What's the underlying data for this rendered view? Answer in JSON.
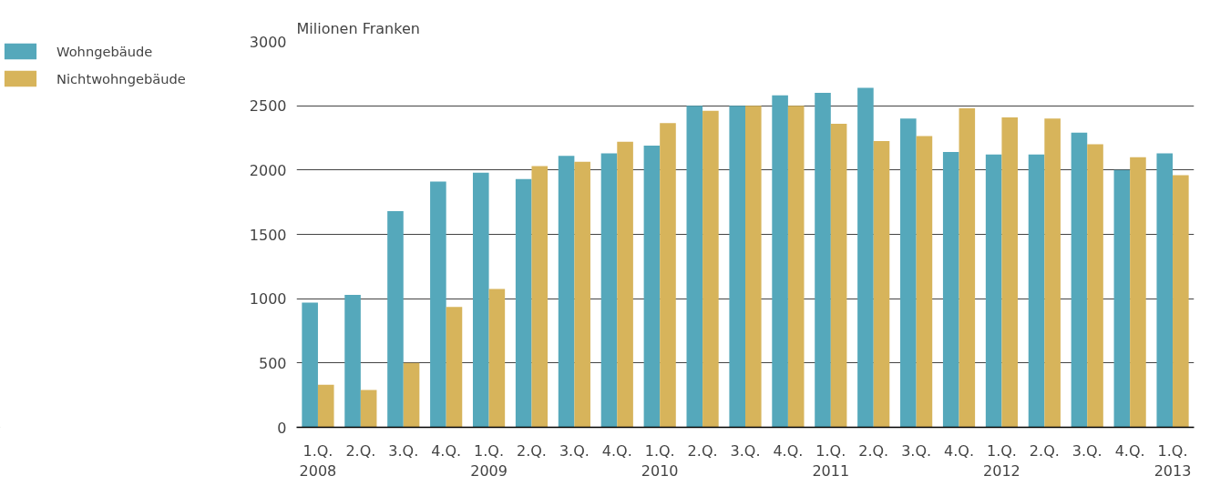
{
  "chart_data": {
    "type": "bar",
    "ylabel": "Milionen Franken",
    "categories": [
      "1.Q.\n2008",
      "2.Q.",
      "3.Q.",
      "4.Q.",
      "1.Q.\n2009",
      "2.Q.",
      "3.Q.",
      "4.Q.",
      "1.Q.\n2010",
      "2.Q.",
      "3.Q.",
      "4.Q.",
      "1.Q.\n2011",
      "2.Q.",
      "3.Q.",
      "4.Q.",
      "1.Q.\n2012",
      "2.Q.",
      "3.Q.",
      "4.Q.",
      "1.Q.\n2013"
    ],
    "series": [
      {
        "name": "Wohngebäude",
        "color": "#55a8bb",
        "values": [
          970,
          1030,
          1680,
          1910,
          1980,
          1930,
          2110,
          2130,
          2190,
          2500,
          2500,
          2580,
          2600,
          2640,
          2400,
          2140,
          2120,
          2120,
          2290,
          2000,
          2130
        ]
      },
      {
        "name": "Nichtwohngebäude",
        "color": "#d7b45b",
        "values": [
          330,
          290,
          500,
          935,
          1075,
          2030,
          2065,
          2220,
          2365,
          2460,
          2500,
          2500,
          2360,
          2225,
          2265,
          2480,
          2410,
          2400,
          2200,
          2100,
          1960
        ]
      }
    ],
    "ylim": [
      0,
      3000
    ],
    "yticks": [
      0,
      500,
      1000,
      1500,
      2000,
      2500,
      3000
    ],
    "grid": "y",
    "legend": "left"
  }
}
